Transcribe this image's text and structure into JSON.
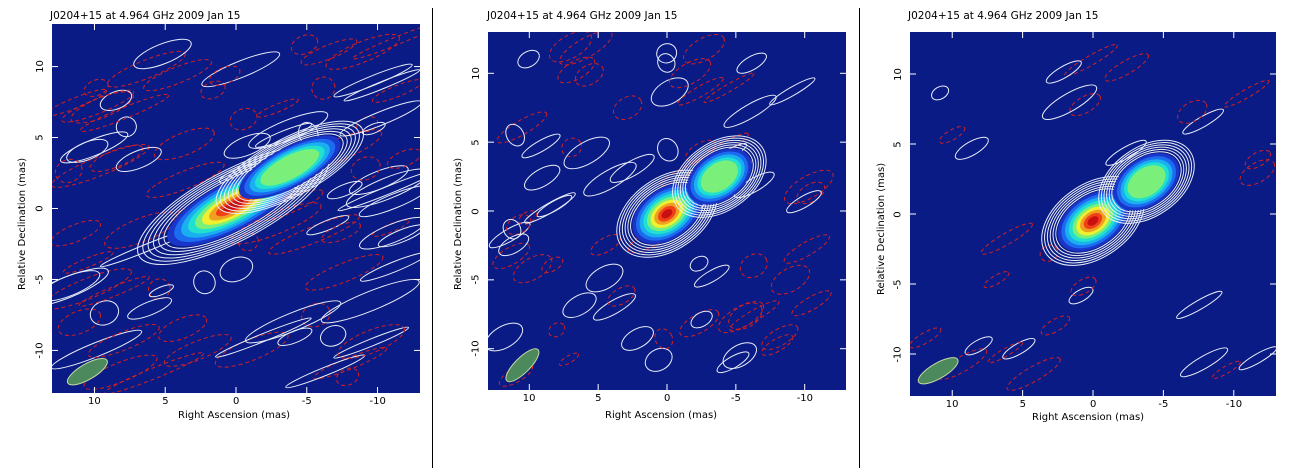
{
  "colors": {
    "background": "#0a1b86",
    "positive_contour": "#e8eef8",
    "negative_contour": "#d42020",
    "beam_fill": "#4c8a5e",
    "beam_edge": "#c8d8a0"
  },
  "chart_data": [
    {
      "type": "heatmap",
      "title": "J0204+15 at 4.964 GHz 2009 Jan 15",
      "xlabel": "Right Ascension  (mas)",
      "ylabel": "Relative Declination  (mas)",
      "xlim": [
        13,
        -13
      ],
      "ylim": [
        -13,
        13
      ],
      "xticks": [
        10,
        5,
        0,
        -5,
        -10
      ],
      "xtick_labels": [
        "10",
        "5",
        "0",
        "-5",
        "-10"
      ],
      "yticks": [
        10,
        5,
        0,
        -5,
        -10
      ],
      "ytick_labels": [
        "10",
        "5",
        "0",
        "-5",
        "-10"
      ],
      "components": [
        {
          "name": "core",
          "x": 0.2,
          "y": 0.2,
          "peak": 1.0
        },
        {
          "name": "jet",
          "x": -3.8,
          "y": 2.9,
          "peak": 0.55
        }
      ],
      "beam": {
        "x": 10.5,
        "y": -11.5,
        "angle": -30
      }
    },
    {
      "type": "heatmap",
      "title": "J0204+15 at 4.964 GHz 2009 Jan 15",
      "xlabel": "Right Ascension  (mas)",
      "ylabel": "Relative Declination  (mas)",
      "xlim": [
        13,
        -13
      ],
      "ylim": [
        -13,
        13
      ],
      "xticks": [
        10,
        5,
        0,
        -5,
        -10
      ],
      "xtick_labels": [
        "10",
        "5",
        "0",
        "-5",
        "-10"
      ],
      "yticks": [
        10,
        5,
        0,
        -5,
        -10
      ],
      "ytick_labels": [
        "10",
        "5",
        "0",
        "-5",
        "-10"
      ],
      "components": [
        {
          "name": "core",
          "x": 0.0,
          "y": -0.2,
          "peak": 1.0
        },
        {
          "name": "jet",
          "x": -3.8,
          "y": 2.5,
          "peak": 0.55
        }
      ],
      "beam": {
        "x": 10.5,
        "y": -11.2,
        "angle": -45
      }
    },
    {
      "type": "heatmap",
      "title": "J0204+15 at 4.964 GHz 2009 Jan 15",
      "xlabel": "Right Ascension  (mas)",
      "ylabel": "Relative Declination  (mas)",
      "xlim": [
        13,
        -13
      ],
      "ylim": [
        -13,
        13
      ],
      "xticks": [
        10,
        5,
        0,
        -5,
        -10
      ],
      "xtick_labels": [
        "10",
        "5",
        "0",
        "-5",
        "-10"
      ],
      "yticks": [
        10,
        5,
        0,
        -5,
        -10
      ],
      "ytick_labels": [
        "10",
        "5",
        "0",
        "-5",
        "-10"
      ],
      "components": [
        {
          "name": "core",
          "x": 0.0,
          "y": -0.5,
          "peak": 1.0
        },
        {
          "name": "jet",
          "x": -3.8,
          "y": 2.3,
          "peak": 0.5
        }
      ],
      "beam": {
        "x": 11.0,
        "y": -11.2,
        "angle": -30
      }
    }
  ]
}
